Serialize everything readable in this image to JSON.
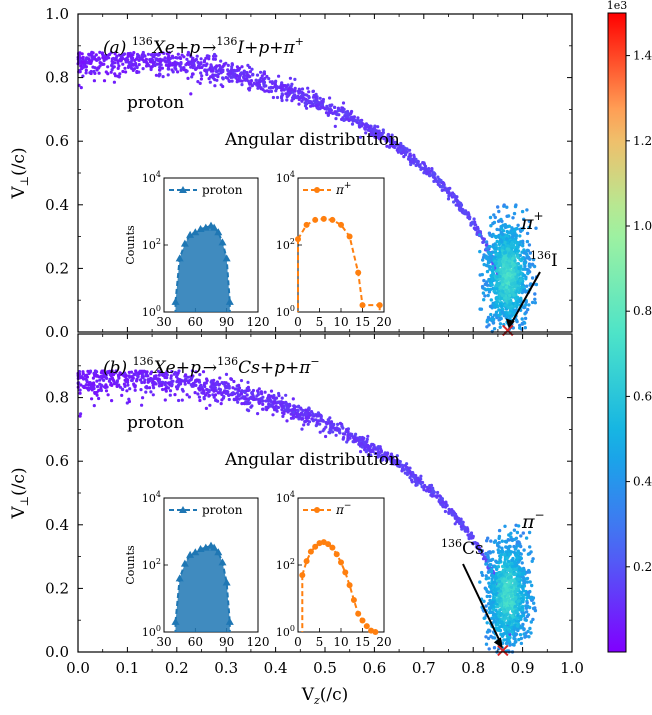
{
  "chart_data": {
    "type": "scatter",
    "xlabel": "V_z(/c)",
    "ylabel": "V_⊥(/c)",
    "xlim": [
      0.0,
      1.0
    ],
    "ylim": [
      0.0,
      1.0
    ],
    "x_ticks": [
      "0.0",
      "0.1",
      "0.2",
      "0.3",
      "0.4",
      "0.5",
      "0.6",
      "0.7",
      "0.8",
      "0.9",
      "1.0"
    ],
    "y_ticks": [
      "0.0",
      "0.2",
      "0.4",
      "0.6",
      "0.8",
      "1.0"
    ],
    "colorbar": {
      "range": [
        0,
        1500
      ],
      "multiplier": "1e3",
      "ticks": [
        "0.2",
        "0.4",
        "0.6",
        "0.8",
        "1.0",
        "1.2",
        "1.4"
      ],
      "colormap": "rainbow"
    },
    "panels": [
      {
        "id": "a",
        "title_prefix": "(a)",
        "reaction": {
          "target_mass": "136",
          "target": "Xe",
          "plus1": "+p",
          "arrow": "→",
          "product_mass": "136",
          "product": "I",
          "tail": "+p+π",
          "pion_charge": "+"
        },
        "label_proton": "proton",
        "label_angular": "Angular distribution",
        "label_pion": "π",
        "label_pion_charge": "+",
        "label_fragment_mass": "136",
        "label_fragment": "I",
        "proton_band": {
          "v_end": 0.87,
          "curve": "V_perp = sqrt(V_end^2 - V_z^2)"
        },
        "fragment_cluster": {
          "x_center": 0.87,
          "y_center": 0.18,
          "x_range": [
            0.81,
            0.93
          ],
          "y_range": [
            0.0,
            0.4
          ]
        },
        "fragment_marker": {
          "x": 0.87,
          "y": 0.005
        },
        "insets": [
          {
            "legend": "proton",
            "color": "#1f77b4",
            "marker": "triangle",
            "xlim": [
              30,
              120
            ],
            "x_ticks": [
              "30",
              "60",
              "90",
              "120"
            ],
            "y_ticks": [
              "10^0",
              "10^2",
              "10^4"
            ],
            "ylabel": "Counts",
            "points": [
              [
                41,
                2
              ],
              [
                45,
                40
              ],
              [
                50,
                110
              ],
              [
                55,
                200
              ],
              [
                60,
                240
              ],
              [
                65,
                300
              ],
              [
                70,
                330
              ],
              [
                75,
                380
              ],
              [
                78,
                330
              ],
              [
                82,
                240
              ],
              [
                86,
                120
              ],
              [
                90,
                40
              ],
              [
                93,
                2
              ]
            ]
          },
          {
            "legend": "π",
            "legend_charge": "+",
            "color": "#ff7f0e",
            "marker": "circle",
            "xlim": [
              0,
              20
            ],
            "x_ticks": [
              "0",
              "5",
              "10",
              "15",
              "20"
            ],
            "y_ticks": [
              "10^0",
              "10^2",
              "10^4"
            ],
            "points": [
              [
                0,
                150
              ],
              [
                2,
                400
              ],
              [
                4,
                560
              ],
              [
                6,
                600
              ],
              [
                8,
                560
              ],
              [
                10,
                400
              ],
              [
                12,
                180
              ],
              [
                14,
                15
              ],
              [
                15,
                1.6
              ],
              [
                19,
                1.6
              ]
            ]
          }
        ]
      },
      {
        "id": "b",
        "title_prefix": "(b)",
        "reaction": {
          "target_mass": "136",
          "target": "Xe",
          "plus1": "+p",
          "arrow": "→",
          "product_mass": "136",
          "product": "Cs",
          "tail": "+p+π",
          "pion_charge": "−"
        },
        "label_proton": "proton",
        "label_angular": "Angular distribution",
        "label_pion": "π",
        "label_pion_charge": "−",
        "label_fragment_mass": "136",
        "label_fragment": "Cs",
        "proton_band": {
          "v_end": 0.875,
          "curve": "V_perp = sqrt(V_end^2 - V_z^2)"
        },
        "fragment_cluster": {
          "x_center": 0.87,
          "y_center": 0.18,
          "x_range": [
            0.81,
            0.93
          ],
          "y_range": [
            0.0,
            0.4
          ]
        },
        "fragment_marker": {
          "x": 0.86,
          "y": 0.005
        },
        "insets": [
          {
            "legend": "proton",
            "color": "#1f77b4",
            "marker": "triangle",
            "xlim": [
              30,
              120
            ],
            "x_ticks": [
              "30",
              "60",
              "90",
              "120"
            ],
            "y_ticks": [
              "10^0",
              "10^2",
              "10^4"
            ],
            "ylabel": "Counts",
            "points": [
              [
                41,
                2
              ],
              [
                45,
                40
              ],
              [
                50,
                110
              ],
              [
                55,
                200
              ],
              [
                60,
                240
              ],
              [
                65,
                300
              ],
              [
                70,
                330
              ],
              [
                75,
                380
              ],
              [
                78,
                330
              ],
              [
                82,
                240
              ],
              [
                86,
                120
              ],
              [
                90,
                30
              ],
              [
                93,
                2
              ]
            ]
          },
          {
            "legend": "π",
            "legend_charge": "−",
            "color": "#ff7f0e",
            "marker": "circle",
            "xlim": [
              0,
              20
            ],
            "x_ticks": [
              "0",
              "5",
              "10",
              "15",
              "20"
            ],
            "y_ticks": [
              "10^0",
              "10^2",
              "10^4"
            ],
            "points": [
              [
                1,
                50
              ],
              [
                2,
                130
              ],
              [
                3,
                250
              ],
              [
                4,
                350
              ],
              [
                5,
                450
              ],
              [
                6,
                480
              ],
              [
                7,
                420
              ],
              [
                8,
                330
              ],
              [
                9,
                210
              ],
              [
                10,
                120
              ],
              [
                11,
                60
              ],
              [
                12,
                25
              ],
              [
                13,
                9
              ],
              [
                14,
                3.5
              ],
              [
                15,
                2.2
              ],
              [
                16,
                1.5
              ],
              [
                17,
                1.1
              ],
              [
                18,
                1.0
              ]
            ]
          }
        ]
      }
    ]
  }
}
